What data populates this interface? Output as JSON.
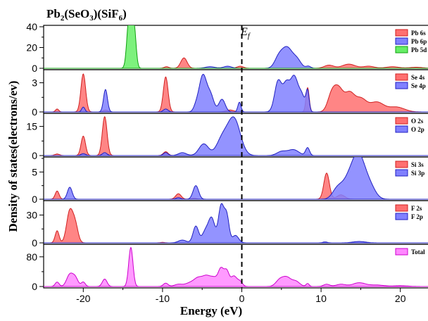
{
  "chart_data": {
    "type": "area",
    "title_main": "Pb",
    "title_sub1": "2",
    "title_mid1": "(SeO",
    "title_sub2": "3",
    "title_mid2": ")(SiF",
    "title_sub3": "6",
    "title_end": ")",
    "xlabel": "Energy (eV)",
    "ylabel": "Density of states(electrons/ev)",
    "fermi_label": "E",
    "fermi_sub": "f",
    "xlim": [
      -25,
      25
    ],
    "xticks": [
      "-20",
      "-10",
      "0",
      "10",
      "20"
    ],
    "fermi_level": 0,
    "panels": [
      {
        "ylim": [
          0,
          40
        ],
        "yticks": [
          "0",
          "20",
          "40"
        ],
        "series": [
          {
            "name": "Pb 6s",
            "fill": "#ff7070",
            "stroke": "#d02020",
            "peaks": [
              [
                -7.3,
                10,
                0.4
              ],
              [
                -9.5,
                1.5,
                0.3
              ],
              [
                -0.2,
                2,
                0.4
              ],
              [
                11,
                3,
                0.6
              ],
              [
                13.5,
                4,
                0.8
              ],
              [
                16,
                2,
                0.7
              ],
              [
                19,
                1.5,
                0.8
              ],
              [
                22,
                1,
                0.8
              ]
            ]
          },
          {
            "name": "Pb 6p",
            "fill": "#8080ff",
            "stroke": "#2020c0",
            "peaks": [
              [
                5.7,
                20,
                0.7
              ],
              [
                4.6,
                8,
                0.5
              ],
              [
                7,
                7,
                0.5
              ],
              [
                -1.8,
                2,
                0.5
              ],
              [
                -4,
                1.5,
                0.6
              ],
              [
                8.4,
                2,
                0.3
              ]
            ]
          },
          {
            "name": "Pb 5d",
            "fill": "#66ee66",
            "stroke": "#10a010",
            "peaks": [
              [
                -14.2,
                52,
                0.28
              ],
              [
                -13.6,
                40,
                0.25
              ]
            ]
          }
        ]
      },
      {
        "ylim": [
          0,
          4.2
        ],
        "yticks": [
          "0",
          "3"
        ],
        "series": [
          {
            "name": "Se 4s",
            "fill": "#ff7070",
            "stroke": "#d02020",
            "peaks": [
              [
                -20,
                3.9,
                0.3
              ],
              [
                -9.6,
                3.6,
                0.3
              ],
              [
                -23.3,
                0.3,
                0.2
              ],
              [
                -17.2,
                0.2,
                0.3
              ],
              [
                8.3,
                2.5,
                0.2
              ],
              [
                11.3,
                1.5,
                0.5
              ],
              [
                12.2,
                2.3,
                0.6
              ],
              [
                13.6,
                1.8,
                0.6
              ],
              [
                15,
                1.3,
                0.7
              ],
              [
                17,
                1.0,
                0.9
              ],
              [
                19.5,
                0.5,
                1.0
              ],
              [
                -1.5,
                0.2,
                0.5
              ]
            ]
          },
          {
            "name": "Se 4p",
            "fill": "#8080ff",
            "stroke": "#2020c0",
            "peaks": [
              [
                -17.2,
                2.3,
                0.25
              ],
              [
                -20,
                0.5,
                0.2
              ],
              [
                -4.9,
                3.8,
                0.5
              ],
              [
                -3.9,
                1.5,
                0.4
              ],
              [
                -2.5,
                1.3,
                0.4
              ],
              [
                -0.3,
                1.0,
                0.2
              ],
              [
                -5.8,
                0.4,
                0.3
              ],
              [
                4.6,
                3.2,
                0.45
              ],
              [
                5.6,
                2.5,
                0.4
              ],
              [
                6.6,
                3.6,
                0.5
              ],
              [
                7.6,
                1.5,
                0.4
              ],
              [
                8.3,
                2.0,
                0.2
              ],
              [
                -9.6,
                0.3,
                0.3
              ]
            ]
          }
        ]
      },
      {
        "ylim": [
          0,
          21
        ],
        "yticks": [
          "0",
          "15"
        ],
        "series": [
          {
            "name": "O 2s",
            "fill": "#ff7070",
            "stroke": "#d02020",
            "peaks": [
              [
                -20,
                10,
                0.28
              ],
              [
                -17.3,
                20,
                0.3
              ],
              [
                -9.6,
                2,
                0.3
              ],
              [
                -23.3,
                0.8,
                0.3
              ]
            ]
          },
          {
            "name": "O 2p",
            "fill": "#8080ff",
            "stroke": "#2020c0",
            "peaks": [
              [
                -1.0,
                19,
                0.8
              ],
              [
                -2.5,
                8,
                0.7
              ],
              [
                -4.8,
                6,
                0.6
              ],
              [
                -7.5,
                1.5,
                0.5
              ],
              [
                -9.6,
                1.5,
                0.3
              ],
              [
                5,
                2,
                0.6
              ],
              [
                6.5,
                3,
                0.7
              ],
              [
                8.3,
                4,
                0.25
              ],
              [
                -20,
                1,
                0.3
              ],
              [
                -17.3,
                1.5,
                0.3
              ]
            ]
          }
        ]
      },
      {
        "ylim": [
          0,
          7.5
        ],
        "yticks": [
          "0",
          "5"
        ],
        "series": [
          {
            "name": "Si 3s",
            "fill": "#ff7070",
            "stroke": "#d02020",
            "peaks": [
              [
                -23.3,
                1.5,
                0.25
              ],
              [
                -8,
                1.0,
                0.35
              ],
              [
                10.7,
                4.8,
                0.35
              ],
              [
                12.5,
                0.8,
                0.5
              ],
              [
                -6,
                0.2,
                0.3
              ]
            ]
          },
          {
            "name": "Si 3p",
            "fill": "#8080ff",
            "stroke": "#2020c0",
            "peaks": [
              [
                -21.7,
                2.2,
                0.3
              ],
              [
                -5.8,
                2.5,
                0.35
              ],
              [
                14.8,
                7.0,
                0.8
              ],
              [
                13.5,
                3.5,
                0.9
              ],
              [
                12,
                1.5,
                0.6
              ],
              [
                16.2,
                2,
                0.7
              ],
              [
                -8,
                0.3,
                0.3
              ]
            ]
          }
        ]
      },
      {
        "ylim": [
          0,
          44
        ],
        "yticks": [
          "0",
          "30"
        ],
        "series": [
          {
            "name": "F 2s",
            "fill": "#ff7070",
            "stroke": "#d02020",
            "peaks": [
              [
                -23.3,
                13,
                0.25
              ],
              [
                -21.7,
                34,
                0.4
              ],
              [
                -21,
                18,
                0.35
              ],
              [
                -10,
                0.5,
                0.3
              ]
            ]
          },
          {
            "name": "F 2p",
            "fill": "#8080ff",
            "stroke": "#2020c0",
            "peaks": [
              [
                -2.6,
                40,
                0.35
              ],
              [
                -1.9,
                28,
                0.3
              ],
              [
                -3.8,
                26,
                0.4
              ],
              [
                -5.8,
                18,
                0.35
              ],
              [
                -4.6,
                12,
                0.4
              ],
              [
                -7.5,
                3,
                0.5
              ],
              [
                -0.8,
                8,
                0.4
              ],
              [
                10.5,
                1,
                0.3
              ],
              [
                14.8,
                1.5,
                0.8
              ]
            ]
          }
        ]
      },
      {
        "ylim": [
          0,
          110
        ],
        "yticks": [
          "0",
          "80"
        ],
        "series": [
          {
            "name": "Total",
            "fill": "#ff88ff",
            "stroke": "#cc00cc",
            "peaks": [
              [
                -14,
                105,
                0.27
              ],
              [
                -21.7,
                32,
                0.4
              ],
              [
                -21,
                22,
                0.35
              ],
              [
                -23.3,
                12,
                0.25
              ],
              [
                -20,
                12,
                0.25
              ],
              [
                -17.3,
                20,
                0.3
              ],
              [
                -9.6,
                9,
                0.3
              ],
              [
                -8,
                6,
                0.5
              ],
              [
                -6.5,
                10,
                0.6
              ],
              [
                -5.5,
                20,
                0.5
              ],
              [
                -4.5,
                25,
                0.5
              ],
              [
                -3.5,
                22,
                0.5
              ],
              [
                -2.6,
                45,
                0.35
              ],
              [
                -1.9,
                38,
                0.3
              ],
              [
                -1.0,
                28,
                0.4
              ],
              [
                -0.2,
                12,
                0.3
              ],
              [
                4.8,
                18,
                0.5
              ],
              [
                5.7,
                22,
                0.5
              ],
              [
                6.8,
                14,
                0.5
              ],
              [
                8.3,
                8,
                0.2
              ],
              [
                10.7,
                6,
                0.4
              ],
              [
                12.5,
                6,
                0.6
              ],
              [
                14.8,
                10,
                0.8
              ],
              [
                17,
                4,
                0.9
              ],
              [
                20,
                2,
                1.0
              ]
            ]
          }
        ]
      }
    ]
  }
}
